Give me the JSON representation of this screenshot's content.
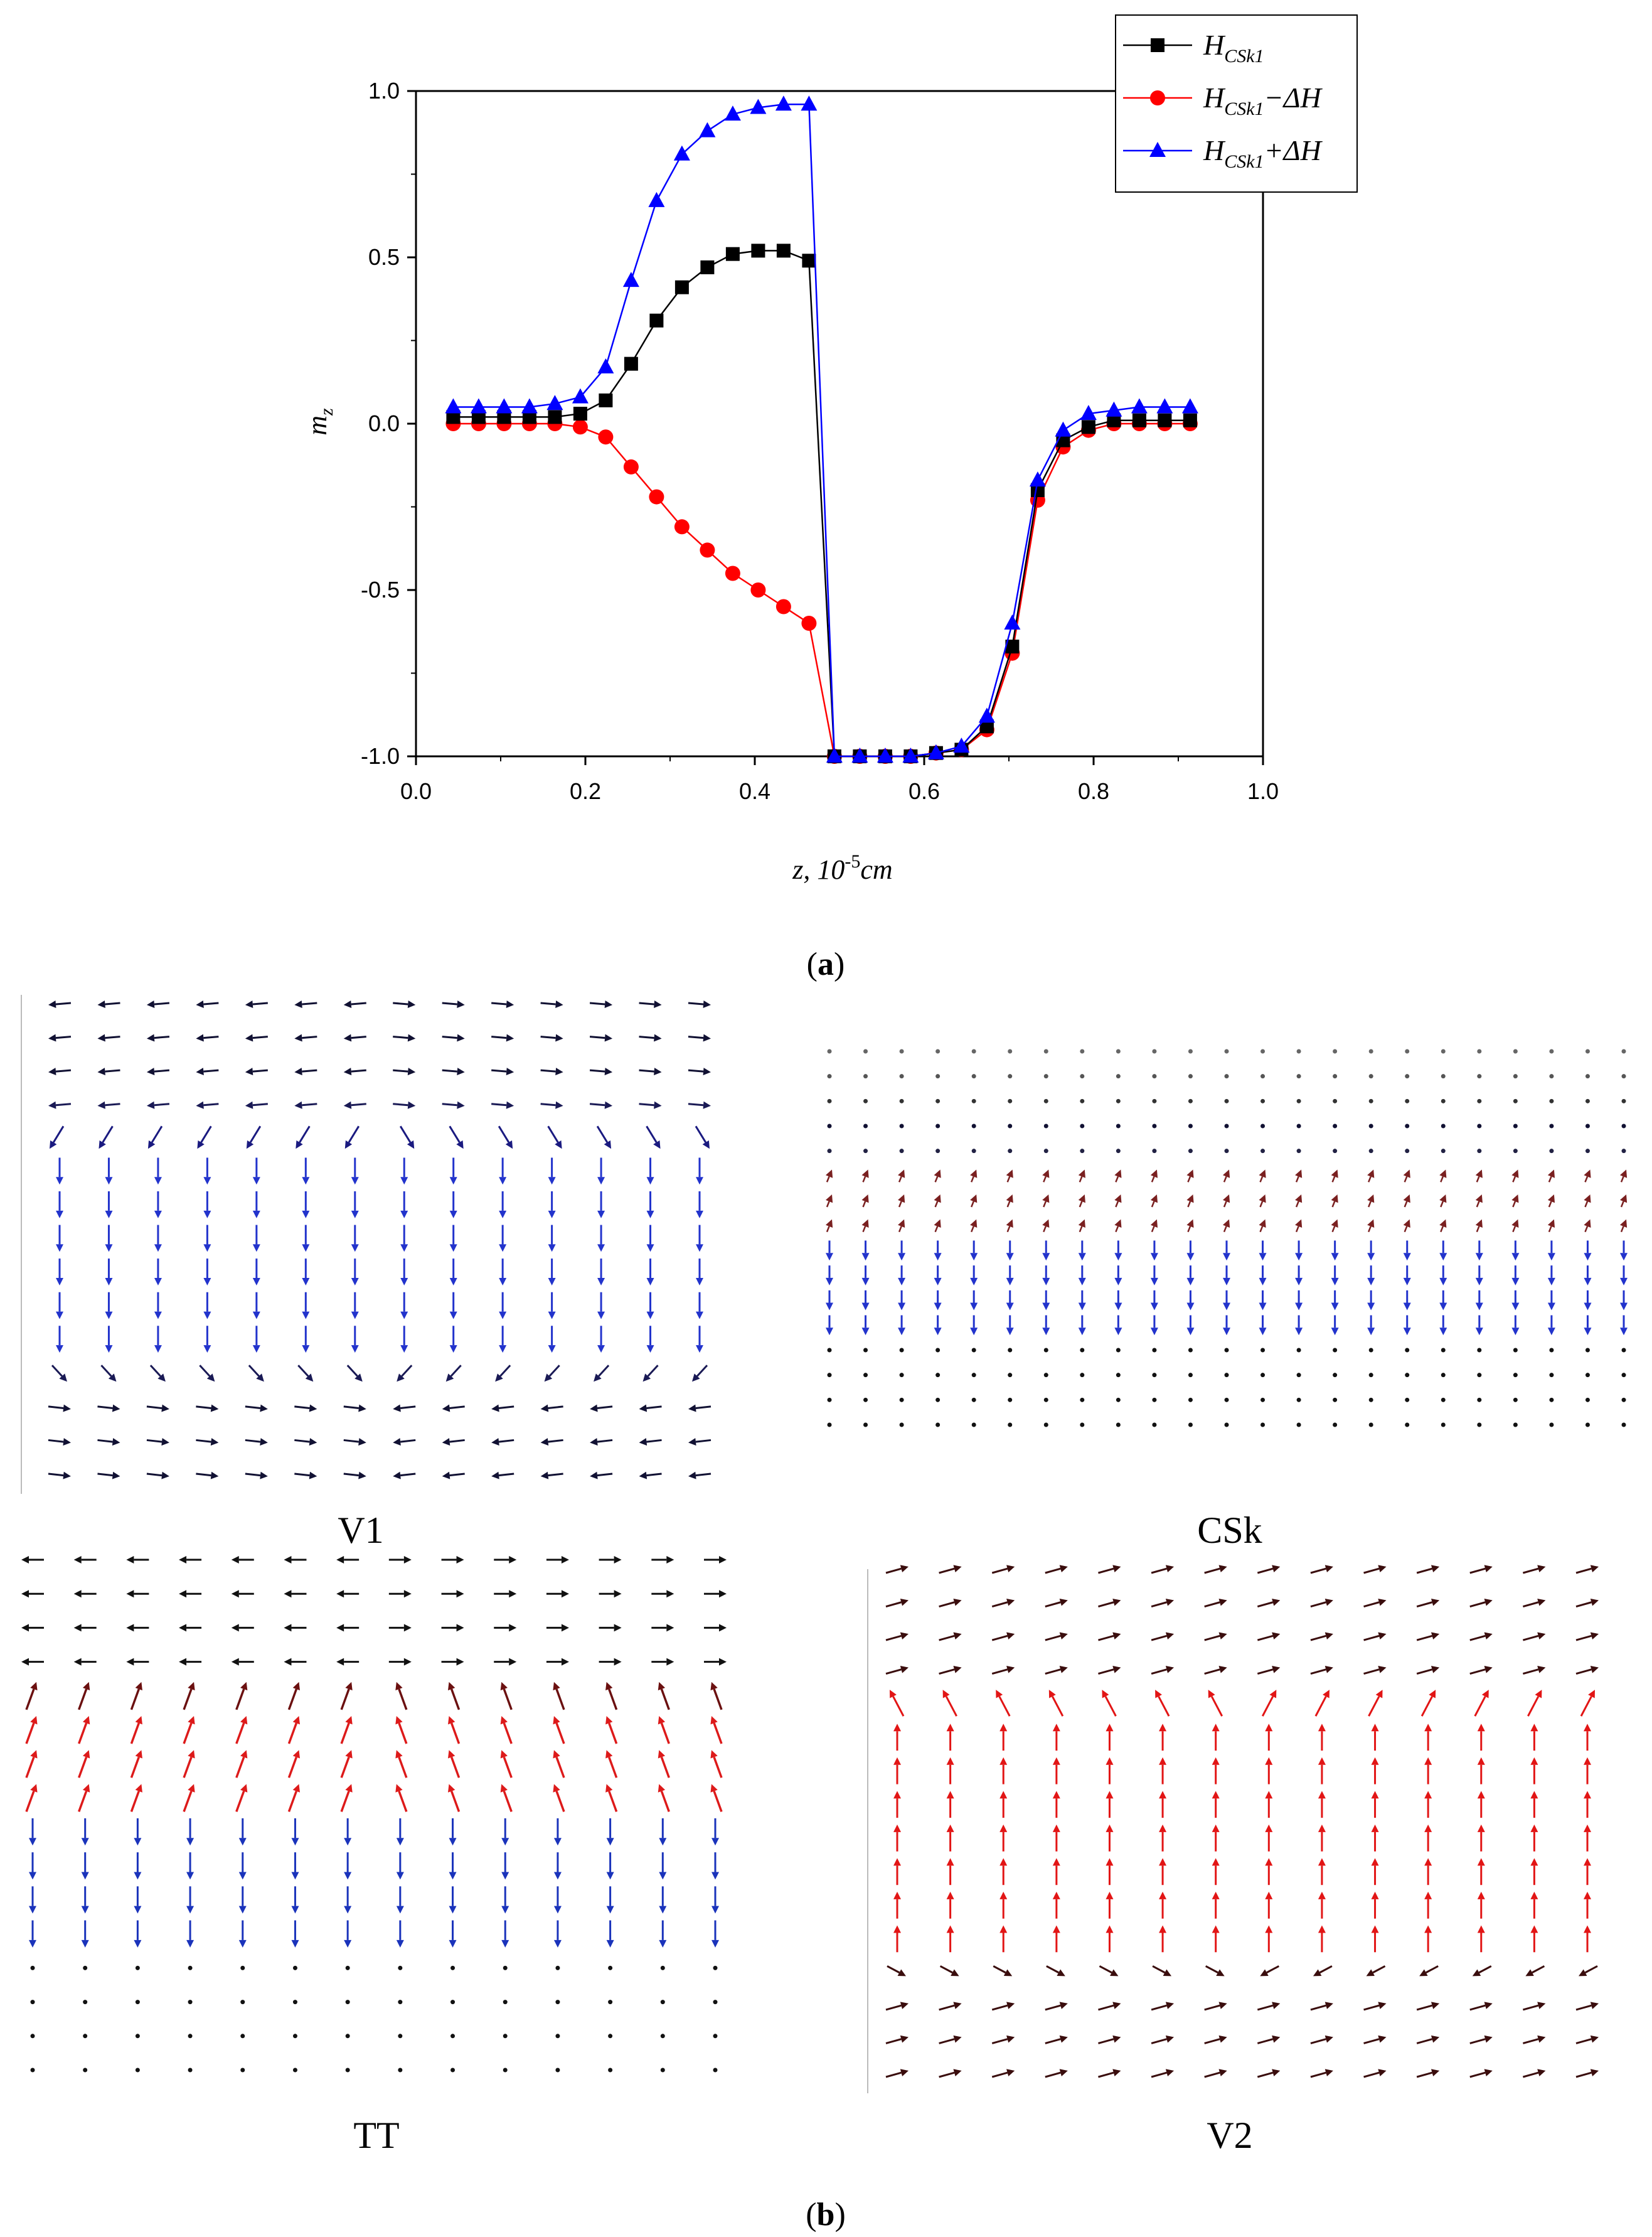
{
  "figure": {
    "panel_a_label_open": "(",
    "panel_a_label_letter": "a",
    "panel_a_label_close": ")",
    "panel_b_label_open": "(",
    "panel_b_label_letter": "b",
    "panel_b_label_close": ")"
  },
  "chart_data": [
    {
      "type": "line",
      "title": "",
      "xlabel_prefix": "z, 10",
      "xlabel_exp": "-5",
      "xlabel_unit": "cm",
      "ylabel_main": "m",
      "ylabel_sub": "z",
      "xlim": [
        0.0,
        1.0
      ],
      "ylim": [
        -1.0,
        1.0
      ],
      "xticks": [
        0.0,
        0.2,
        0.4,
        0.6,
        0.8,
        1.0
      ],
      "xtick_labels": [
        "0.0",
        "0.2",
        "0.4",
        "0.6",
        "0.8",
        "1.0"
      ],
      "yticks": [
        -1.0,
        -0.5,
        0.0,
        0.5,
        1.0
      ],
      "ytick_labels": [
        "-1.0",
        "-0.5",
        "0.0",
        "0.5",
        "1.0"
      ],
      "legend_position": "top-right",
      "x": [
        0.044,
        0.074,
        0.104,
        0.134,
        0.164,
        0.194,
        0.224,
        0.254,
        0.284,
        0.314,
        0.344,
        0.374,
        0.404,
        0.434,
        0.464,
        0.494,
        0.524,
        0.554,
        0.584,
        0.614,
        0.644,
        0.674,
        0.704,
        0.734,
        0.764,
        0.794,
        0.824,
        0.854,
        0.884,
        0.914
      ],
      "series": [
        {
          "name": "H_CSk1",
          "legend_main": "H",
          "legend_sub": "CSk1",
          "legend_suffix": "",
          "color": "#000000",
          "marker": "square",
          "values": [
            0.02,
            0.02,
            0.02,
            0.02,
            0.02,
            0.03,
            0.07,
            0.18,
            0.31,
            0.41,
            0.47,
            0.51,
            0.52,
            0.52,
            0.49,
            -1.0,
            -1.0,
            -1.0,
            -1.0,
            -0.99,
            -0.98,
            -0.91,
            -0.67,
            -0.2,
            -0.05,
            -0.01,
            0.01,
            0.01,
            0.01,
            0.01
          ]
        },
        {
          "name": "H_CSk1-ΔH",
          "legend_main": "H",
          "legend_sub": "CSk1",
          "legend_suffix": "−ΔH",
          "color": "#ff0000",
          "marker": "circle",
          "values": [
            0.0,
            0.0,
            0.0,
            0.0,
            0.0,
            -0.01,
            -0.04,
            -0.13,
            -0.22,
            -0.31,
            -0.38,
            -0.45,
            -0.5,
            -0.55,
            -0.6,
            -1.0,
            -1.0,
            -1.0,
            -1.0,
            -0.99,
            -0.98,
            -0.92,
            -0.69,
            -0.23,
            -0.07,
            -0.02,
            0.0,
            0.0,
            0.0,
            0.0
          ]
        },
        {
          "name": "H_CSk1+ΔH",
          "legend_main": "H",
          "legend_sub": "CSk1",
          "legend_suffix": "+ΔH",
          "color": "#0000ff",
          "marker": "triangle",
          "values": [
            0.05,
            0.05,
            0.05,
            0.05,
            0.06,
            0.08,
            0.17,
            0.43,
            0.67,
            0.81,
            0.88,
            0.93,
            0.95,
            0.96,
            0.96,
            -1.0,
            -1.0,
            -1.0,
            -1.0,
            -0.99,
            -0.97,
            -0.88,
            -0.6,
            -0.17,
            -0.02,
            0.03,
            0.04,
            0.05,
            0.05,
            0.05
          ]
        }
      ]
    },
    {
      "type": "vector-field",
      "title": "V1",
      "row_colors": [
        "#111133",
        "#111133",
        "#111133",
        "#1a1a55",
        "#1a1a80",
        "#2233cc",
        "#2233cc",
        "#2233cc",
        "#2233cc",
        "#2233cc",
        "#2233cc",
        "#1a1a55",
        "#111133",
        "#111133",
        "#111133"
      ],
      "row_modes": [
        "h-out",
        "h-out",
        "h-out",
        "h-out",
        "diag-out",
        "down",
        "down",
        "down",
        "down",
        "down",
        "down",
        "diag-in",
        "h-in",
        "h-in",
        "h-in"
      ]
    },
    {
      "type": "vector-field",
      "title": "CSk",
      "row_colors": [
        "#666666",
        "#555555",
        "#333333",
        "#111133",
        "#222244",
        "#7a2020",
        "#7a2020",
        "#7a2020",
        "#2233cc",
        "#2233cc",
        "#2233cc",
        "#2233cc",
        "#111111",
        "#111111",
        "#111111",
        "#111111"
      ],
      "row_modes": [
        "dot",
        "dot",
        "dot",
        "dot",
        "dot",
        "curl",
        "curl",
        "curl",
        "down",
        "down",
        "down",
        "down",
        "dot",
        "dot",
        "dot",
        "dot"
      ]
    },
    {
      "type": "vector-field",
      "title": "TT",
      "row_colors": [
        "#111111",
        "#111111",
        "#111111",
        "#111111",
        "#6b1010",
        "#dd1a1a",
        "#dd1a1a",
        "#dd1a1a",
        "#1a33bb",
        "#1a33bb",
        "#1a33bb",
        "#1a33bb",
        "#111111",
        "#111111",
        "#111111",
        "#111111"
      ],
      "row_modes": [
        "h-split",
        "h-split",
        "h-split",
        "h-split",
        "up-diag",
        "up-diag",
        "up-diag",
        "up-diag",
        "down",
        "down",
        "down",
        "down",
        "dot",
        "dot",
        "dot",
        "dot"
      ]
    },
    {
      "type": "vector-field",
      "title": "V2",
      "row_colors": [
        "#3a0d0d",
        "#3a0d0d",
        "#3a0d0d",
        "#3a0d0d",
        "#e21515",
        "#e21515",
        "#e21515",
        "#e21515",
        "#e21515",
        "#e21515",
        "#e21515",
        "#e21515",
        "#3a0d0d",
        "#3a0d0d",
        "#3a0d0d",
        "#3a0d0d"
      ],
      "row_modes": [
        "diag-right",
        "diag-right",
        "diag-right",
        "diag-right",
        "up-out",
        "up",
        "up",
        "up",
        "up",
        "up",
        "up",
        "up",
        "diag-in-low",
        "diag-right",
        "diag-right",
        "diag-right"
      ]
    }
  ]
}
